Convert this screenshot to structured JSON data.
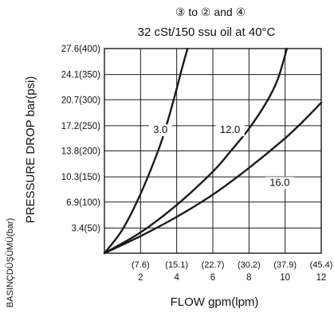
{
  "chart_data": {
    "type": "line",
    "title": "③ to ② and ④",
    "subtitle": "32 cSt/150 ssu oil at 40°C",
    "xlabel": "FLOW gpm(lpm)",
    "ylabel": "PRESSURE DROP bar(psi)",
    "side_label": "BASINÇDÜŞÜMÜ(bar)",
    "xlim": [
      0,
      12
    ],
    "ylim": [
      0,
      27.6
    ],
    "grid": true,
    "x_ticks": [
      {
        "value": 2,
        "label": "2",
        "secondary": "(7.6)"
      },
      {
        "value": 4,
        "label": "4",
        "secondary": "(15.1)"
      },
      {
        "value": 6,
        "label": "6",
        "secondary": "(22.7)"
      },
      {
        "value": 8,
        "label": "8",
        "secondary": "(30.2)"
      },
      {
        "value": 10,
        "label": "10",
        "secondary": "(37.9)"
      },
      {
        "value": 12,
        "label": "12",
        "secondary": "(45.4)"
      }
    ],
    "y_ticks": [
      {
        "value": 3.4,
        "label": "3.4(50)"
      },
      {
        "value": 6.9,
        "label": "6.9(100)"
      },
      {
        "value": 10.3,
        "label": "10.3(150)"
      },
      {
        "value": 13.8,
        "label": "13.8(200)"
      },
      {
        "value": 17.2,
        "label": "17.2(250)"
      },
      {
        "value": 20.7,
        "label": "20.7(300)"
      },
      {
        "value": 24.1,
        "label": "24.1(350)"
      },
      {
        "value": 27.6,
        "label": "27.6(400)"
      }
    ],
    "series": [
      {
        "name": "3.0",
        "x": [
          0,
          1,
          2,
          3,
          3.5,
          4.0,
          4.3,
          4.6
        ],
        "y": [
          0,
          3.2,
          8.0,
          14.0,
          17.8,
          22.2,
          25.0,
          27.6
        ]
      },
      {
        "name": "12.0",
        "x": [
          0,
          2,
          4,
          6,
          7,
          8,
          9,
          9.6,
          10.1
        ],
        "y": [
          0,
          2.8,
          6.5,
          11.0,
          13.8,
          16.8,
          20.5,
          23.5,
          27.6
        ]
      },
      {
        "name": "16.0",
        "x": [
          0,
          2,
          4,
          6,
          8,
          10,
          11,
          12
        ],
        "y": [
          0,
          2.3,
          4.9,
          7.9,
          11.5,
          15.5,
          17.8,
          20.3
        ]
      }
    ],
    "curve_labels": [
      {
        "series": "3.0",
        "x": 3.1,
        "y": 16.2
      },
      {
        "series": "12.0",
        "x": 6.95,
        "y": 16.2
      },
      {
        "series": "16.0",
        "x": 9.7,
        "y": 9.1
      }
    ]
  }
}
